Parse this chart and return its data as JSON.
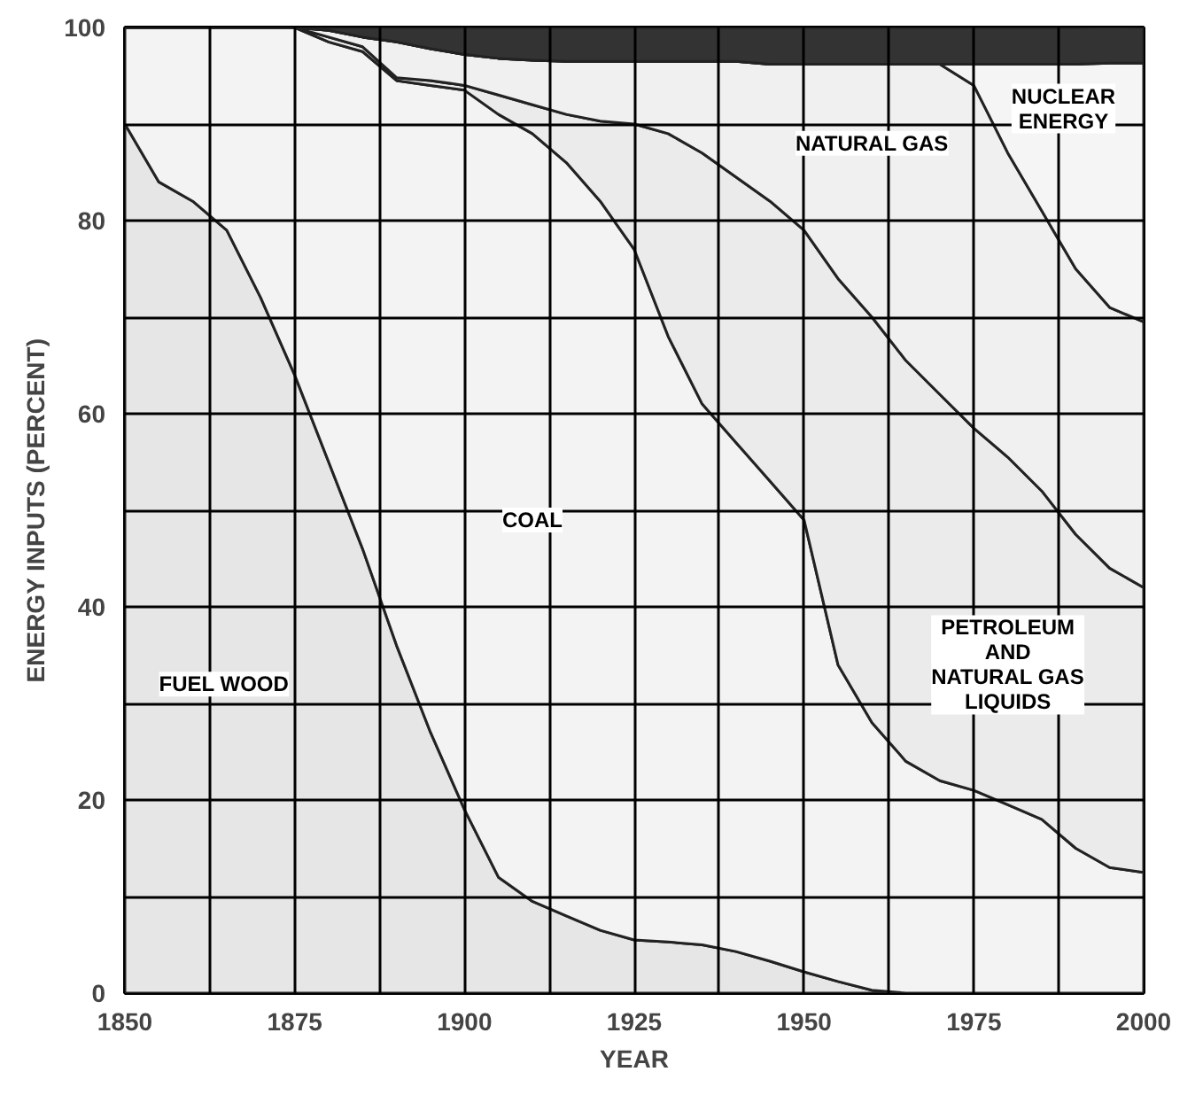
{
  "chart_data": {
    "type": "area",
    "stacked": true,
    "xlabel": "YEAR",
    "ylabel": "ENERGY INPUTS (PERCENT)",
    "x": [
      1850,
      1855,
      1860,
      1865,
      1870,
      1875,
      1880,
      1885,
      1890,
      1895,
      1900,
      1905,
      1910,
      1915,
      1920,
      1925,
      1930,
      1935,
      1940,
      1945,
      1950,
      1955,
      1960,
      1965,
      1970,
      1975,
      1980,
      1985,
      1990,
      1995,
      2000
    ],
    "series": [
      {
        "name": "FUEL WOOD",
        "color": "#e6e6e6",
        "values": [
          90,
          84,
          82,
          79,
          72,
          64,
          55,
          46,
          36,
          27,
          19,
          12,
          9.5,
          8,
          6.5,
          5.5,
          5.3,
          5,
          4.3,
          3.3,
          2.2,
          1.2,
          0.3,
          0,
          0,
          0,
          0,
          0,
          0,
          0,
          0
        ]
      },
      {
        "name": "COAL",
        "color": "#f3f3f3",
        "values": [
          10,
          16,
          18,
          21,
          28,
          36,
          43.5,
          51.5,
          58.5,
          67,
          74.5,
          79,
          79.5,
          78,
          75.5,
          71.5,
          62.7,
          56,
          52.7,
          49.7,
          46.8,
          32.8,
          27.7,
          24,
          22,
          21,
          19.5,
          18,
          15,
          13,
          12.5
        ]
      },
      {
        "name": "PETROLEUM\nAND\nNATURAL GAS\nLIQUIDS",
        "color": "#ebebeb",
        "values": [
          0,
          0,
          0,
          0,
          0,
          0,
          0.5,
          0.5,
          0.3,
          0.5,
          0.5,
          2,
          3,
          5,
          8.3,
          13,
          21,
          26,
          27.5,
          29,
          30,
          40,
          42,
          41.5,
          40,
          37.5,
          36,
          34,
          32.5,
          31,
          29.5
        ]
      },
      {
        "name": "NATURAL GAS",
        "color": "#f0f0f0",
        "values": [
          0,
          0,
          0,
          0,
          0,
          0,
          0.7,
          1,
          3.7,
          3.3,
          3.2,
          3.8,
          4.6,
          5.5,
          6.2,
          6.5,
          7.5,
          9.5,
          12,
          14.2,
          17.2,
          22.2,
          26.2,
          30.7,
          34.2,
          35.5,
          31.5,
          29,
          27.5,
          27,
          27.5
        ]
      },
      {
        "name": "NUCLEAR\nENERGY",
        "color": "#f5f5f5",
        "values": [
          0,
          0,
          0,
          0,
          0,
          0,
          0,
          0,
          0,
          0,
          0,
          0,
          0,
          0,
          0,
          0,
          0,
          0,
          0,
          0,
          0,
          0,
          0,
          0,
          0,
          2.2,
          9.2,
          15.2,
          21.2,
          25.3,
          26.8
        ]
      },
      {
        "color": "#333333",
        "values": [
          0,
          0,
          0,
          0,
          0,
          0,
          0.3,
          1,
          1.5,
          2.2,
          2.8,
          3.2,
          3.4,
          3.5,
          3.5,
          3.5,
          3.5,
          3.5,
          3.5,
          3.8,
          3.8,
          3.8,
          3.8,
          3.8,
          3.8,
          3.8,
          3.8,
          3.8,
          3.8,
          3.8,
          3.7
        ]
      }
    ],
    "xlim": [
      1850,
      2000
    ],
    "xticks": [
      1850,
      {
        "value": 1862.5,
        "label": null
      },
      1875,
      {
        "value": 1887.5,
        "label": null
      },
      1900,
      {
        "value": 1912.5,
        "label": null
      },
      1925,
      {
        "value": 1937.5,
        "label": null
      },
      1950,
      {
        "value": 1962.5,
        "label": null
      },
      1975,
      {
        "value": 1987.5,
        "label": null
      },
      2000
    ],
    "ylim": [
      0,
      100
    ],
    "yticks": [
      0,
      {
        "value": 10,
        "label": null
      },
      20,
      {
        "value": 30,
        "label": null
      },
      40,
      {
        "value": 50,
        "label": null
      },
      60,
      {
        "value": 70,
        "label": null
      },
      80,
      {
        "value": 90,
        "label": null
      },
      100
    ],
    "grid": true
  }
}
